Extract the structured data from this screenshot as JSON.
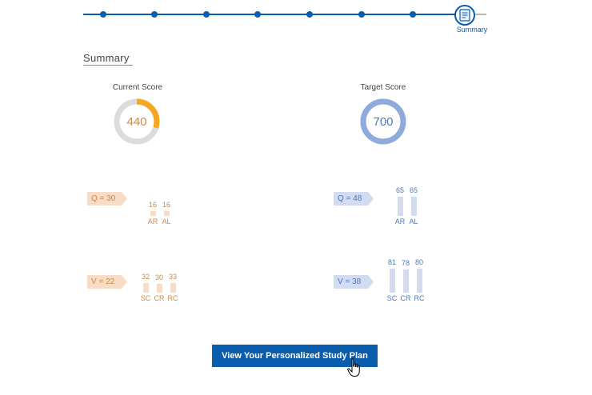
{
  "stepper": {
    "current_label": "Summary",
    "current_icon": "document-icon",
    "accent": "#0a5cad"
  },
  "summary": {
    "title": "Summary"
  },
  "current_score": {
    "label": "Current Score",
    "value": "440",
    "progress_fraction": 0.3,
    "color": "#f5a623"
  },
  "target_score": {
    "label": "Target Score",
    "value": "700",
    "progress_fraction": 1.0,
    "color": "#8faadc"
  },
  "current": {
    "quant": {
      "tag": "Q = 30",
      "bars": [
        {
          "value": "16",
          "label": "AR",
          "num": 16
        },
        {
          "value": "16",
          "label": "AL",
          "num": 16
        }
      ]
    },
    "verbal": {
      "tag": "V = 22",
      "bars": [
        {
          "value": "32",
          "label": "SC",
          "num": 32
        },
        {
          "value": "30",
          "label": "CR",
          "num": 30
        },
        {
          "value": "33",
          "label": "RC",
          "num": 33
        }
      ]
    }
  },
  "target": {
    "quant": {
      "tag": "Q = 48",
      "bars": [
        {
          "value": "65",
          "label": "AR",
          "num": 65
        },
        {
          "value": "65",
          "label": "AL",
          "num": 65
        }
      ]
    },
    "verbal": {
      "tag": "V = 38",
      "bars": [
        {
          "value": "81",
          "label": "SC",
          "num": 81
        },
        {
          "value": "78",
          "label": "CR",
          "num": 78
        },
        {
          "value": "80",
          "label": "RC",
          "num": 80
        }
      ]
    }
  },
  "cta": {
    "label": "View Your Personalized Study Plan"
  },
  "cursor_icon": "hand-pointer-icon"
}
